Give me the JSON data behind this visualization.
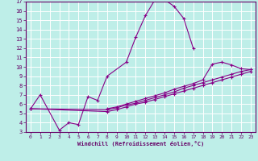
{
  "xlabel": "Windchill (Refroidissement éolien,°C)",
  "bg_color": "#beeee8",
  "line_color": "#880088",
  "grid_color": "#ffffff",
  "text_color": "#660066",
  "xlim": [
    -0.5,
    23.5
  ],
  "ylim": [
    3,
    17
  ],
  "xticks": [
    0,
    1,
    2,
    3,
    4,
    5,
    6,
    7,
    8,
    9,
    10,
    11,
    12,
    13,
    14,
    15,
    16,
    17,
    18,
    19,
    20,
    21,
    22,
    23
  ],
  "yticks": [
    3,
    4,
    5,
    6,
    7,
    8,
    9,
    10,
    11,
    12,
    13,
    14,
    15,
    16,
    17
  ],
  "curves": [
    {
      "x": [
        0,
        1,
        3,
        4,
        5,
        6,
        7,
        8,
        10,
        11,
        12,
        13,
        14,
        15,
        16,
        17
      ],
      "y": [
        5.5,
        7.0,
        3.2,
        4.0,
        3.8,
        6.8,
        6.4,
        9.0,
        10.5,
        13.2,
        15.5,
        17.2,
        17.2,
        16.5,
        15.2,
        12.0
      ]
    },
    {
      "x": [
        8,
        9,
        10,
        11,
        12,
        13,
        14,
        15,
        16,
        17,
        18,
        19,
        20,
        21,
        22,
        23
      ],
      "y": [
        5.5,
        5.7,
        6.0,
        6.3,
        6.6,
        6.9,
        7.2,
        7.6,
        7.9,
        8.2,
        8.6,
        10.3,
        10.5,
        10.2,
        9.8,
        9.7
      ]
    },
    {
      "x": [
        0,
        8,
        9,
        10,
        11,
        12,
        13,
        14,
        15,
        16,
        17,
        18,
        19,
        20,
        21,
        22,
        23
      ],
      "y": [
        5.5,
        5.4,
        5.6,
        5.9,
        6.1,
        6.4,
        6.7,
        7.0,
        7.3,
        7.7,
        8.0,
        8.3,
        8.6,
        8.9,
        9.2,
        9.5,
        9.7
      ]
    },
    {
      "x": [
        0,
        8,
        9,
        10,
        11,
        12,
        13,
        14,
        15,
        16,
        17,
        18,
        19,
        20,
        21,
        22,
        23
      ],
      "y": [
        5.5,
        5.2,
        5.4,
        5.7,
        6.0,
        6.2,
        6.5,
        6.8,
        7.1,
        7.4,
        7.7,
        8.0,
        8.3,
        8.6,
        8.9,
        9.2,
        9.5
      ]
    }
  ]
}
